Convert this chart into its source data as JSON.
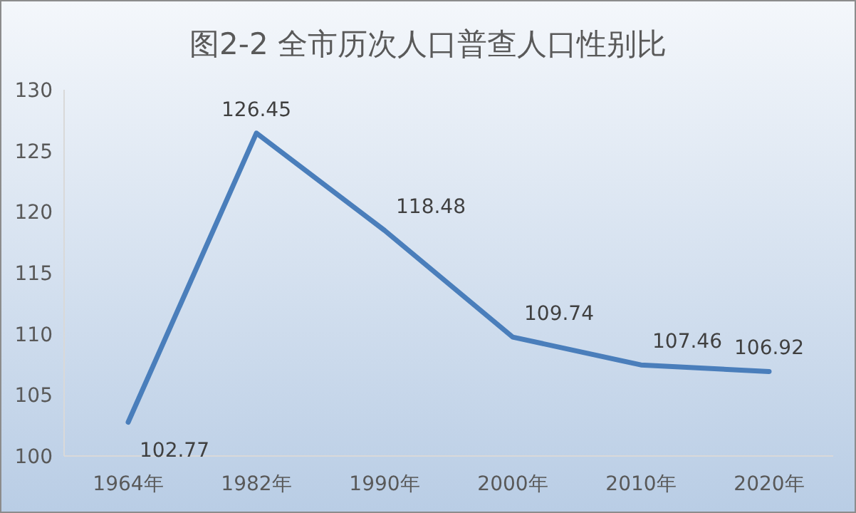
{
  "chart_data": {
    "type": "line",
    "title": "图2-2 全市历次人口普查人口性别比",
    "categories": [
      "1964年",
      "1982年",
      "1990年",
      "2000年",
      "2010年",
      "2020年"
    ],
    "series": [
      {
        "color": "#4a7ebb",
        "values": [
          102.77,
          126.45,
          118.48,
          109.74,
          107.46,
          106.92
        ]
      }
    ],
    "ylim": [
      100,
      130
    ],
    "yticks": [
      100,
      105,
      110,
      115,
      120,
      125,
      130
    ],
    "data_labels": true,
    "grid": false,
    "marker": "none",
    "line_style": "solid"
  }
}
